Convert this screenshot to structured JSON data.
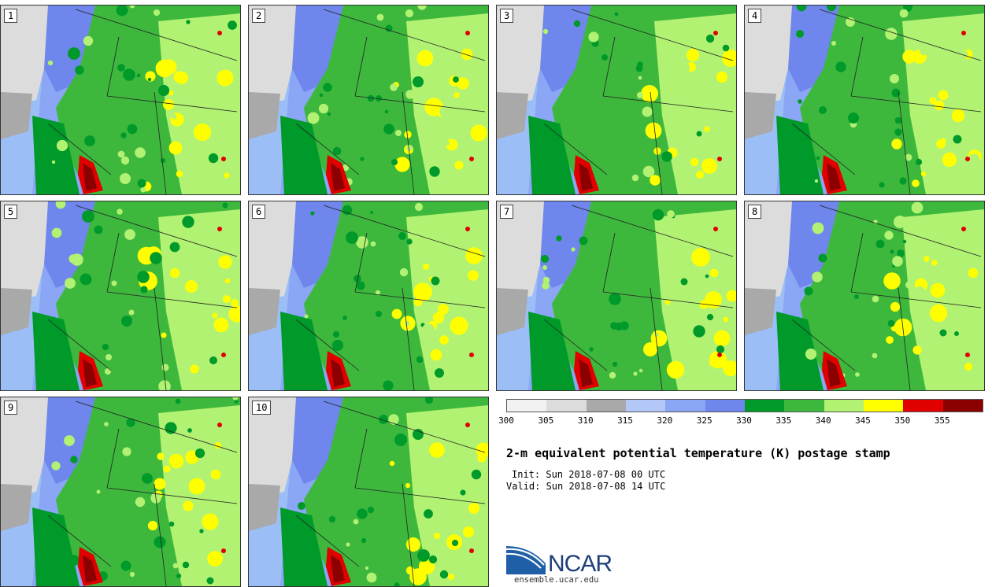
{
  "panels": [
    {
      "label": "1"
    },
    {
      "label": "2"
    },
    {
      "label": "3"
    },
    {
      "label": "4"
    },
    {
      "label": "5"
    },
    {
      "label": "6"
    },
    {
      "label": "7"
    },
    {
      "label": "8"
    },
    {
      "label": "9"
    },
    {
      "label": "10"
    }
  ],
  "colorbar": {
    "colors": [
      "#f2f2f2",
      "#dcdcdc",
      "#a9a9a9",
      "#b3c8f7",
      "#8aa6f4",
      "#6f86ec",
      "#009a2a",
      "#3db83d",
      "#b2f272",
      "#ffff00",
      "#e00000",
      "#8b0000"
    ],
    "ticks": [
      "300",
      "305",
      "310",
      "315",
      "320",
      "325",
      "330",
      "335",
      "340",
      "345",
      "350",
      "355"
    ]
  },
  "title": "2-m equivalent potential temperature (K) postage stamp",
  "init": "Init: Sun 2018-07-08 00 UTC",
  "valid": "Valid: Sun 2018-07-08 14 UTC",
  "logo": {
    "name": "NCAR",
    "url_text": "ensemble.ucar.edu",
    "colors": {
      "primary": "#1e5fa8",
      "dark": "#1e3f78"
    }
  }
}
